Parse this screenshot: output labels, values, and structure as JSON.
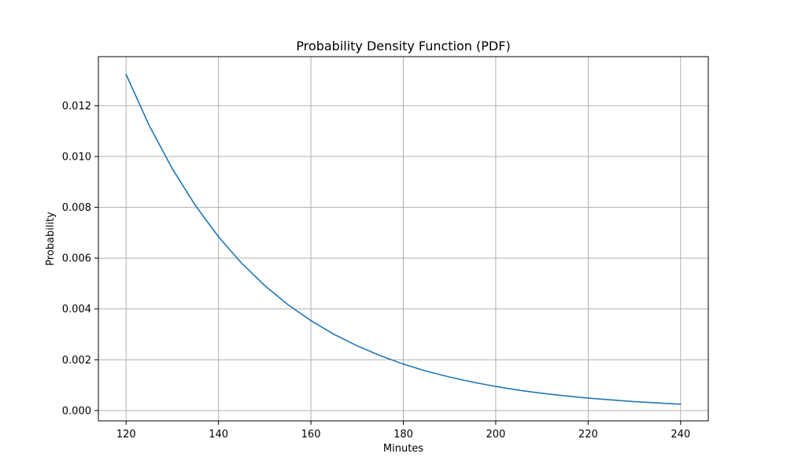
{
  "chart_data": {
    "type": "line",
    "title": "Probability Density Function (PDF)",
    "xlabel": "Minutes",
    "ylabel": "Probability",
    "xlim": [
      114,
      246
    ],
    "ylim": [
      -0.000405,
      0.01393
    ],
    "xticks": [
      120,
      140,
      160,
      180,
      200,
      220,
      240
    ],
    "xtick_labels": [
      "120",
      "140",
      "160",
      "180",
      "200",
      "220",
      "240"
    ],
    "yticks": [
      0.0,
      0.002,
      0.004,
      0.006,
      0.008,
      0.01,
      0.012
    ],
    "ytick_labels": [
      "0.000",
      "0.002",
      "0.004",
      "0.006",
      "0.008",
      "0.010",
      "0.012"
    ],
    "grid": true,
    "series": [
      {
        "color": "#1f77b4",
        "x": [
          120,
          125,
          130,
          135,
          140,
          145,
          150,
          155,
          160,
          165,
          170,
          175,
          180,
          185,
          190,
          195,
          200,
          205,
          210,
          215,
          220,
          225,
          230,
          235,
          240
        ],
        "y": [
          0.01323,
          0.01122,
          0.00952,
          0.00807,
          0.00684,
          0.0058,
          0.00492,
          0.00417,
          0.00354,
          0.003,
          0.00255,
          0.00216,
          0.00183,
          0.00155,
          0.00132,
          0.00112,
          0.00095,
          0.0008,
          0.00068,
          0.00058,
          0.00049,
          0.00042,
          0.00035,
          0.0003,
          0.00025
        ]
      }
    ]
  }
}
